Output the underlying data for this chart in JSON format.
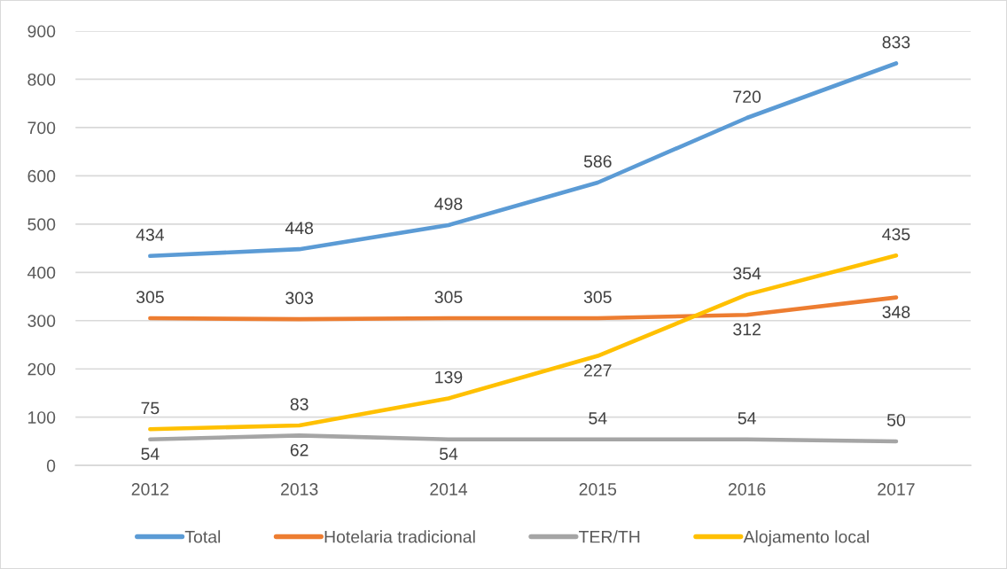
{
  "chart_data": {
    "type": "line",
    "categories": [
      "2012",
      "2013",
      "2014",
      "2015",
      "2016",
      "2017"
    ],
    "series": [
      {
        "name": "Total",
        "color": "#5b9bd5",
        "values": [
          434,
          448,
          498,
          586,
          720,
          833
        ]
      },
      {
        "name": "Hotelaria tradicional",
        "color": "#ed7d31",
        "values": [
          305,
          303,
          305,
          305,
          312,
          348
        ]
      },
      {
        "name": "TER/TH",
        "color": "#a5a5a5",
        "values": [
          54,
          62,
          54,
          54,
          54,
          50
        ]
      },
      {
        "name": "Alojamento local",
        "color": "#ffc000",
        "values": [
          75,
          83,
          139,
          227,
          354,
          435
        ]
      }
    ],
    "ylim": [
      0,
      900
    ],
    "yticks": [
      0,
      100,
      200,
      300,
      400,
      500,
      600,
      700,
      800,
      900
    ],
    "grid": "y",
    "legend": "bottom",
    "data_labels": true,
    "marker": "none",
    "line_style": "solid"
  }
}
